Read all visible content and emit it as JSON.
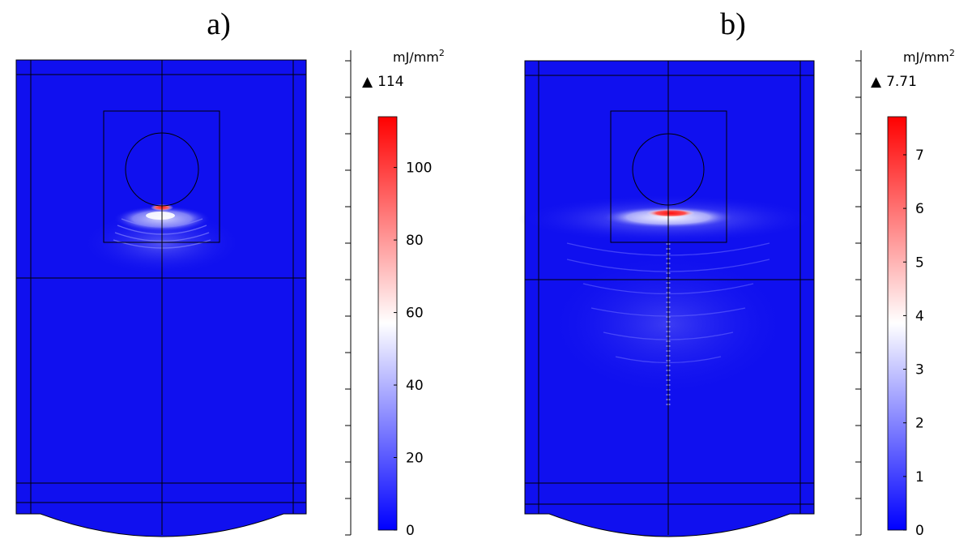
{
  "panels": [
    {
      "label": "a)",
      "colorbar": {
        "unit": "mJ/mm",
        "unit_sup": "2",
        "max_marker": "▲",
        "max_value": "114",
        "min": 0,
        "max": 114,
        "ticks": [
          "0",
          "20",
          "40",
          "60",
          "80",
          "100"
        ]
      }
    },
    {
      "label": "b)",
      "colorbar": {
        "unit": "mJ/mm",
        "unit_sup": "2",
        "max_marker": "▲",
        "max_value": "7.71",
        "min": 0,
        "max": 7.71,
        "ticks": [
          "0",
          "1",
          "2",
          "3",
          "4",
          "5",
          "6",
          "7"
        ]
      }
    }
  ],
  "colors": {
    "background_field": "#1010ef",
    "hot": "#ff0000",
    "mid": "#ffffff",
    "cold": "#0000ff",
    "lines": "#000000"
  }
}
